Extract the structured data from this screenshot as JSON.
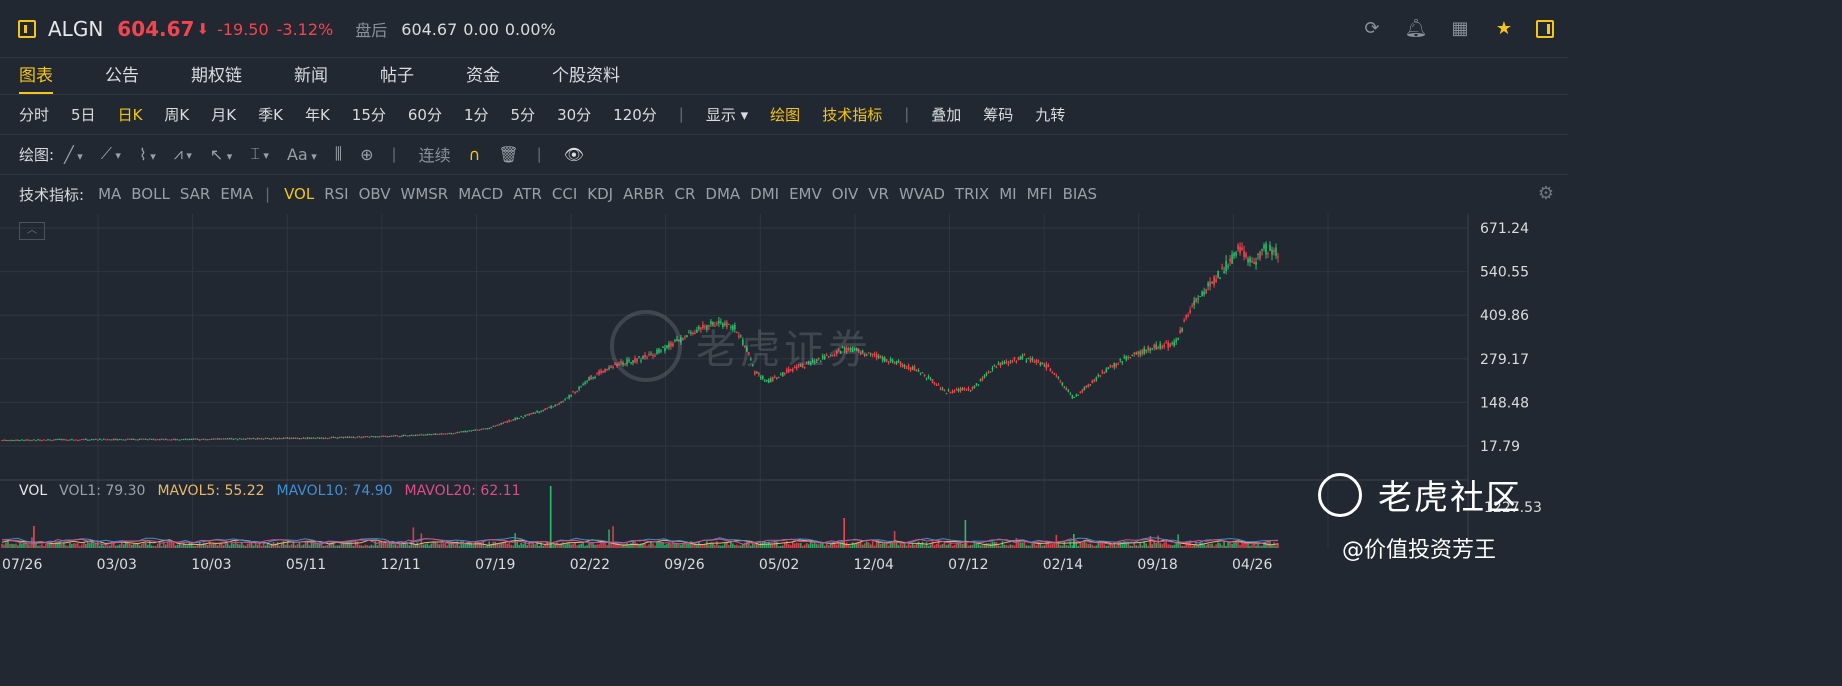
{
  "quote": {
    "symbol": "ALGN",
    "price": "604.67",
    "arrow": "⬇",
    "change": "-19.50",
    "change_pct": "-3.12%",
    "after_hours_label": "盘后",
    "ah_price": "604.67",
    "ah_change": "0.00",
    "ah_change_pct": "0.00%"
  },
  "tabs": [
    "图表",
    "公告",
    "期权链",
    "新闻",
    "帖子",
    "资金",
    "个股资料"
  ],
  "periods": [
    "分时",
    "5日",
    "日K",
    "周K",
    "月K",
    "季K",
    "年K",
    "15分",
    "60分",
    "1分",
    "5分",
    "30分",
    "120分"
  ],
  "period_tools": [
    "显示",
    "绘图",
    "技术指标"
  ],
  "period_extra": [
    "叠加",
    "筹码",
    "九转"
  ],
  "draw": {
    "label": "绘图:",
    "continuous": "连续"
  },
  "indicators": {
    "label": "技术指标:",
    "main": [
      "MA",
      "BOLL",
      "SAR",
      "EMA"
    ],
    "sub": [
      "VOL",
      "RSI",
      "OBV",
      "WMSR",
      "MACD",
      "ATR",
      "CCI",
      "KDJ",
      "ARBR",
      "CR",
      "DMA",
      "DMI",
      "EMV",
      "OIV",
      "VR",
      "WVAD",
      "TRIX",
      "MI",
      "MFI",
      "BIAS"
    ]
  },
  "vol_legend": {
    "name": "VOL",
    "vol1": "VOL1: 79.30",
    "mavol5": "MAVOL5: 55.22",
    "mavol10": "MAVOL10: 74.90",
    "mavol20": "MAVOL20: 62.11"
  },
  "colors": {
    "up": "#f2454f",
    "down": "#2ebd6b",
    "accent": "#f5c518",
    "vol1": "#9aa0a8",
    "mavol5": "#e8b96a",
    "mavol10": "#3f8fd6",
    "mavol20": "#e04b8a"
  },
  "watermark": {
    "brand": "老虎社区",
    "center": "老虎证券",
    "author": "@价值投资芳王"
  },
  "chart_data": {
    "type": "candlestick",
    "y_ticks": [
      "671.24",
      "540.55",
      "409.86",
      "279.17",
      "148.48",
      "17.79"
    ],
    "vol_tick": "1227.53",
    "x_ticks": [
      "07/26",
      "03/03",
      "10/03",
      "05/11",
      "12/11",
      "07/19",
      "02/22",
      "09/26",
      "05/02",
      "12/04",
      "07/12",
      "02/14",
      "09/18",
      "04/26"
    ],
    "ylim": [
      17.79,
      671.24
    ],
    "series_outline": [
      [
        0,
        35
      ],
      [
        0.05,
        37
      ],
      [
        0.1,
        38
      ],
      [
        0.15,
        38
      ],
      [
        0.2,
        40
      ],
      [
        0.25,
        42
      ],
      [
        0.3,
        47
      ],
      [
        0.35,
        55
      ],
      [
        0.38,
        70
      ],
      [
        0.4,
        96
      ],
      [
        0.42,
        120
      ],
      [
        0.44,
        150
      ],
      [
        0.46,
        220
      ],
      [
        0.48,
        260
      ],
      [
        0.5,
        280
      ],
      [
        0.52,
        310
      ],
      [
        0.54,
        355
      ],
      [
        0.56,
        390
      ],
      [
        0.575,
        370
      ],
      [
        0.585,
        295
      ],
      [
        0.59,
        240
      ],
      [
        0.6,
        210
      ],
      [
        0.62,
        250
      ],
      [
        0.64,
        275
      ],
      [
        0.66,
        310
      ],
      [
        0.68,
        290
      ],
      [
        0.7,
        270
      ],
      [
        0.72,
        240
      ],
      [
        0.74,
        180
      ],
      [
        0.76,
        190
      ],
      [
        0.78,
        260
      ],
      [
        0.8,
        285
      ],
      [
        0.82,
        255
      ],
      [
        0.84,
        160
      ],
      [
        0.86,
        230
      ],
      [
        0.88,
        280
      ],
      [
        0.9,
        310
      ],
      [
        0.92,
        325
      ],
      [
        0.93,
        420
      ],
      [
        0.94,
        470
      ],
      [
        0.96,
        560
      ],
      [
        0.97,
        610
      ],
      [
        0.98,
        560
      ],
      [
        0.99,
        610
      ],
      [
        1.0,
        600
      ]
    ]
  }
}
